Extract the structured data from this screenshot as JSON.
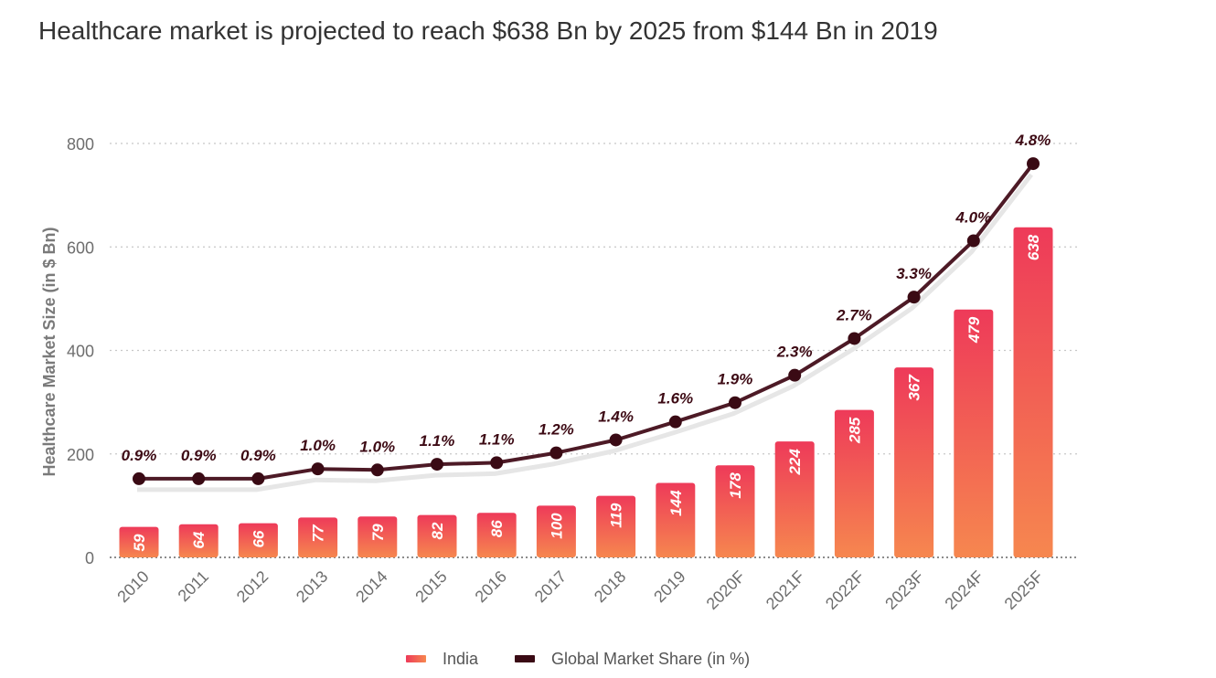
{
  "page": {
    "title": "Healthcare market is projected to reach $638 Bn by 2025 from $144 Bn in 2019"
  },
  "colors": {
    "bar_top": "#ee3a59",
    "bar_bottom": "#f6874f",
    "line": "#4d1a26",
    "line_shadow": "#e6e6e6",
    "marker": "#3a0a14",
    "grid": "#c8c8c8"
  },
  "chart_data": {
    "type": "bar",
    "title": "Healthcare market is projected to reach $638 Bn by 2025 from $144 Bn in 2019",
    "xlabel": "",
    "ylabel": "Healthcare Market Size (in $ Bn)",
    "ylim": [
      0,
      800
    ],
    "yticks": [
      "0",
      "200",
      "400",
      "600",
      "800"
    ],
    "categories": [
      "2010",
      "2011",
      "2012",
      "2013",
      "2014",
      "2015",
      "2016",
      "2017",
      "2018",
      "2019",
      "2020F",
      "2021F",
      "2022F",
      "2023F",
      "2024F",
      "2025F"
    ],
    "series": [
      {
        "name": "India",
        "type": "bar",
        "values": [
          59,
          64,
          66,
          77,
          79,
          82,
          86,
          100,
          119,
          144,
          178,
          224,
          285,
          367,
          479,
          638
        ],
        "labels": [
          "59",
          "64",
          "66",
          "77",
          "79",
          "82",
          "86",
          "100",
          "119",
          "144",
          "178",
          "224",
          "285",
          "367",
          "479",
          "638"
        ]
      },
      {
        "name": "Global Market Share (in %)",
        "type": "line",
        "values": [
          0.9,
          0.9,
          0.9,
          1.0,
          1.0,
          1.1,
          1.1,
          1.2,
          1.4,
          1.6,
          1.9,
          2.3,
          2.7,
          3.3,
          4.0,
          4.8
        ],
        "labels": [
          "0.9%",
          "0.9%",
          "0.9%",
          "1.0%",
          "1.0%",
          "1.1%",
          "1.1%",
          "1.2%",
          "1.4%",
          "1.6%",
          "1.9%",
          "2.3%",
          "2.7%",
          "3.3%",
          "4.0%",
          "4.8%"
        ]
      }
    ],
    "legend": [
      "India",
      "Global Market Share (in %)"
    ],
    "legend_position": "bottom",
    "grid": true
  }
}
